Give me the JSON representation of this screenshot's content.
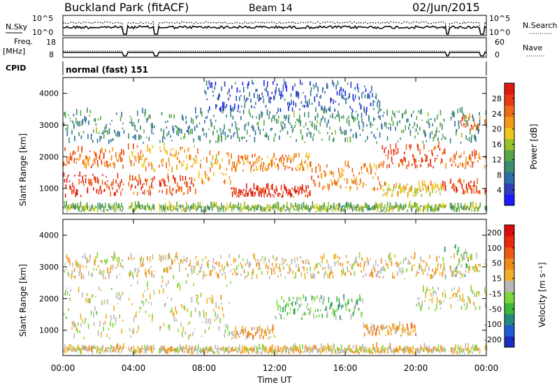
{
  "header": {
    "title": "Buckland Park (fitACF)",
    "beam": "Beam 14",
    "date": "02/Jun/2015"
  },
  "top_panels": {
    "nsky_label": "N.Sky",
    "nsky_ticks": [
      "10^5",
      "10^0"
    ],
    "nsearch_label": "N.Search",
    "nsearch_ticks": [
      "10^5",
      "10^0"
    ],
    "freq_label": "Freq.",
    "freq_unit": "[MHz]",
    "freq_ticks": [
      "18",
      "8"
    ],
    "nave_label": "Nave",
    "nave_ticks": [
      "60",
      "0"
    ],
    "cpid_label": "CPID",
    "cpid_value": "normal (fast) 151"
  },
  "chart_data": [
    {
      "type": "heatmap",
      "panel": "power",
      "ylabel": "Slant Range [km]",
      "yticks": [
        1000,
        2000,
        3000,
        4000
      ],
      "ylim": [
        200,
        4500
      ],
      "xticks": [
        "00:00",
        "04:00",
        "08:00",
        "12:00",
        "16:00",
        "20:00",
        "00:00"
      ],
      "xlim_hours": [
        0,
        24
      ],
      "colorbar": {
        "label": "Power [dB]",
        "ticks": [
          "4",
          "8",
          "12",
          "16",
          "20",
          "24",
          "28"
        ],
        "range": [
          0,
          32
        ],
        "colors": [
          "#1a1aff",
          "#2f3fbf",
          "#2e6ea6",
          "#3c8c6e",
          "#5aa548",
          "#9ac22a",
          "#f0c81e",
          "#f29a19",
          "#ef6a16",
          "#e83a14",
          "#dd1a10"
        ]
      },
      "bands": [
        {
          "t0": 0,
          "t1": 24,
          "r0": 240,
          "r1": 420,
          "level": 0.45
        },
        {
          "t0": 0,
          "t1": 3.5,
          "r0": 700,
          "r1": 1400,
          "level": 0.88
        },
        {
          "t0": 0,
          "t1": 3.5,
          "r0": 1600,
          "r1": 2200,
          "level": 0.78
        },
        {
          "t0": 3.5,
          "t1": 7.5,
          "r0": 750,
          "r1": 1300,
          "level": 0.82
        },
        {
          "t0": 3.5,
          "t1": 7.5,
          "r0": 1500,
          "r1": 2300,
          "level": 0.68
        },
        {
          "t0": 7.5,
          "t1": 9.5,
          "r0": 1100,
          "r1": 2100,
          "level": 0.66
        },
        {
          "t0": 9.5,
          "t1": 14,
          "r0": 700,
          "r1": 1000,
          "level": 0.92
        },
        {
          "t0": 9.5,
          "t1": 14,
          "r0": 1500,
          "r1": 2000,
          "level": 0.72
        },
        {
          "t0": 14,
          "t1": 18,
          "r0": 900,
          "r1": 1700,
          "level": 0.72
        },
        {
          "t0": 18,
          "t1": 21.5,
          "r0": 1600,
          "r1": 2300,
          "level": 0.86
        },
        {
          "t0": 18,
          "t1": 21.5,
          "r0": 700,
          "r1": 1100,
          "level": 0.6
        },
        {
          "t0": 21.5,
          "t1": 24,
          "r0": 800,
          "r1": 1200,
          "level": 0.85
        },
        {
          "t0": 21.5,
          "t1": 24,
          "r0": 1600,
          "r1": 2100,
          "level": 0.78
        },
        {
          "t0": 22.5,
          "t1": 24,
          "r0": 2800,
          "r1": 3200,
          "level": 0.8
        },
        {
          "t0": 0,
          "t1": 24,
          "r0": 2400,
          "r1": 3400,
          "level": 0.32
        },
        {
          "t0": 8,
          "t1": 18,
          "r0": 3400,
          "r1": 4300,
          "level": 0.18
        }
      ]
    },
    {
      "type": "heatmap",
      "panel": "velocity",
      "ylabel": "Slant Range [km]",
      "yticks": [
        1000,
        2000,
        3000,
        4000
      ],
      "ylim": [
        200,
        4500
      ],
      "xticks": [
        "00:00",
        "04:00",
        "08:00",
        "12:00",
        "16:00",
        "20:00",
        "00:00"
      ],
      "xlabel": "Time UT",
      "xlim_hours": [
        0,
        24
      ],
      "colorbar": {
        "label": "Velocity [m s⁻¹]",
        "ticks": [
          "200",
          "100",
          "50",
          "15",
          "-15",
          "-50",
          "-100",
          "-200"
        ],
        "colors": [
          "#1b2fbf",
          "#1f5ad0",
          "#238a7e",
          "#3cb83a",
          "#7fd63a",
          "#b8b8b8",
          "#f0b02a",
          "#f18a1a",
          "#ee5a14",
          "#e8280f",
          "#dd0c0c"
        ]
      },
      "bands": [
        {
          "t0": 0,
          "t1": 24,
          "r0": 240,
          "r1": 420,
          "level": 0.55
        },
        {
          "t0": 0,
          "t1": 3.5,
          "r0": 700,
          "r1": 2300,
          "level": 0.5
        },
        {
          "t0": 3.5,
          "t1": 9.5,
          "r0": 700,
          "r1": 2500,
          "level": 0.5
        },
        {
          "t0": 9.5,
          "t1": 12,
          "r0": 700,
          "r1": 1000,
          "level": 0.62
        },
        {
          "t0": 12,
          "t1": 17,
          "r0": 1300,
          "r1": 2000,
          "level": 0.38
        },
        {
          "t0": 17,
          "t1": 20,
          "r0": 800,
          "r1": 1100,
          "level": 0.63
        },
        {
          "t0": 20,
          "t1": 24,
          "r0": 1600,
          "r1": 2300,
          "level": 0.5
        },
        {
          "t0": 21.5,
          "t1": 23,
          "r0": 2600,
          "r1": 3600,
          "level": 0.36
        },
        {
          "t0": 0,
          "t1": 24,
          "r0": 2600,
          "r1": 3300,
          "level": 0.55
        }
      ]
    }
  ],
  "gap_hours": [
    3.55,
    5.3,
    21.8,
    23.75
  ]
}
